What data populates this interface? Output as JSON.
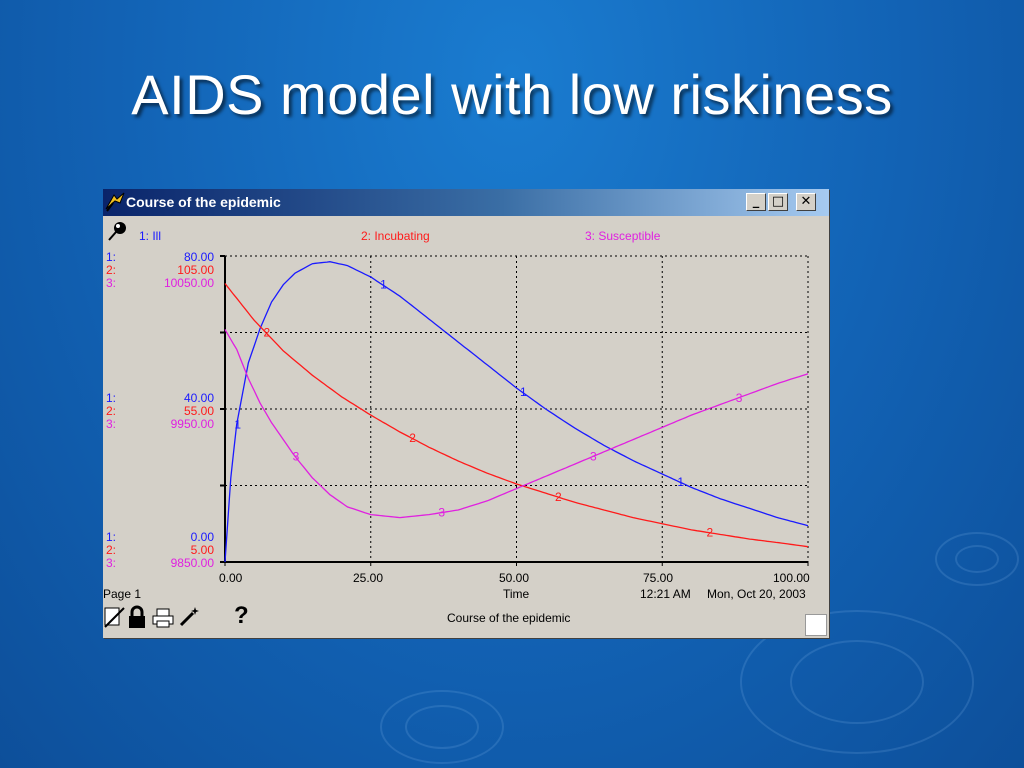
{
  "slide": {
    "title": "AIDS model with low riskiness"
  },
  "window": {
    "title": "Course of the epidemic",
    "controls": {
      "minimize": "_",
      "maximize": "□",
      "close": "✕"
    }
  },
  "legend": [
    {
      "id": "1",
      "label": "1: Ill",
      "color": "#1a1aff"
    },
    {
      "id": "2",
      "label": "2: Incubating",
      "color": "#ff1a1a"
    },
    {
      "id": "3",
      "label": "3: Susceptible",
      "color": "#e020e0"
    }
  ],
  "axes": {
    "top": {
      "s1": "80.00",
      "s2": "105.00",
      "s3": "10050.00"
    },
    "mid": {
      "s1": "40.00",
      "s2": "55.00",
      "s3": "9950.00"
    },
    "bottom": {
      "s1": "0.00",
      "s2": "5.00",
      "s3": "9850.00"
    },
    "series_prefix": {
      "s1": "1:",
      "s2": "2:",
      "s3": "3:"
    },
    "x_ticks": [
      "0.00",
      "25.00",
      "50.00",
      "75.00",
      "100.00"
    ],
    "x_label": "Time"
  },
  "footer": {
    "page": "Page 1",
    "time": "12:21 AM",
    "date": "Mon, Oct 20, 2003",
    "caption": "Course of the epidemic",
    "help": "?"
  },
  "chart_data": {
    "type": "line",
    "title": "Course of the epidemic",
    "xlabel": "Time",
    "xlim": [
      0,
      100
    ],
    "grid": true,
    "series": [
      {
        "name": "Ill",
        "marker": "1",
        "color": "#1a1aff",
        "ylim": [
          0,
          80
        ],
        "x": [
          0,
          1,
          2,
          4,
          6,
          8,
          10,
          12,
          15,
          18,
          21,
          25,
          30,
          35,
          40,
          45,
          50,
          55,
          60,
          65,
          70,
          75,
          80,
          85,
          90,
          95,
          100
        ],
        "y": [
          0,
          22,
          36,
          52,
          61,
          68,
          72.5,
          75.5,
          78,
          78.5,
          77.5,
          74.5,
          69.5,
          63.5,
          57.5,
          51.5,
          45.5,
          40,
          35,
          30.5,
          26.5,
          23,
          19.5,
          16.5,
          14,
          11.5,
          9.5
        ]
      },
      {
        "name": "Incubating",
        "marker": "2",
        "color": "#ff1a1a",
        "ylim": [
          5,
          105
        ],
        "x": [
          0,
          5,
          10,
          15,
          20,
          25,
          30,
          35,
          40,
          45,
          50,
          55,
          60,
          65,
          70,
          75,
          80,
          85,
          90,
          95,
          100
        ],
        "y": [
          96,
          84,
          74,
          66,
          59,
          53,
          47.5,
          42.5,
          38,
          34,
          30.5,
          27.5,
          24.5,
          22,
          19.5,
          17.5,
          15.5,
          14,
          12.5,
          11.3,
          10
        ]
      },
      {
        "name": "Susceptible",
        "marker": "3",
        "color": "#e020e0",
        "ylim": [
          9850,
          10050
        ],
        "x": [
          0,
          2,
          4,
          6,
          8,
          10,
          12,
          15,
          18,
          21,
          25,
          30,
          35,
          40,
          45,
          50,
          55,
          60,
          65,
          70,
          75,
          80,
          85,
          90,
          95,
          100
        ],
        "y": [
          10002,
          9989,
          9970,
          9954,
          9941,
          9930,
          9919,
          9905,
          9894,
          9886,
          9881,
          9879,
          9881,
          9884,
          9890,
          9898,
          9906,
          9914,
          9922,
          9930,
          9938,
          9946,
          9953,
          9960,
          9967,
          9973
        ]
      }
    ]
  }
}
